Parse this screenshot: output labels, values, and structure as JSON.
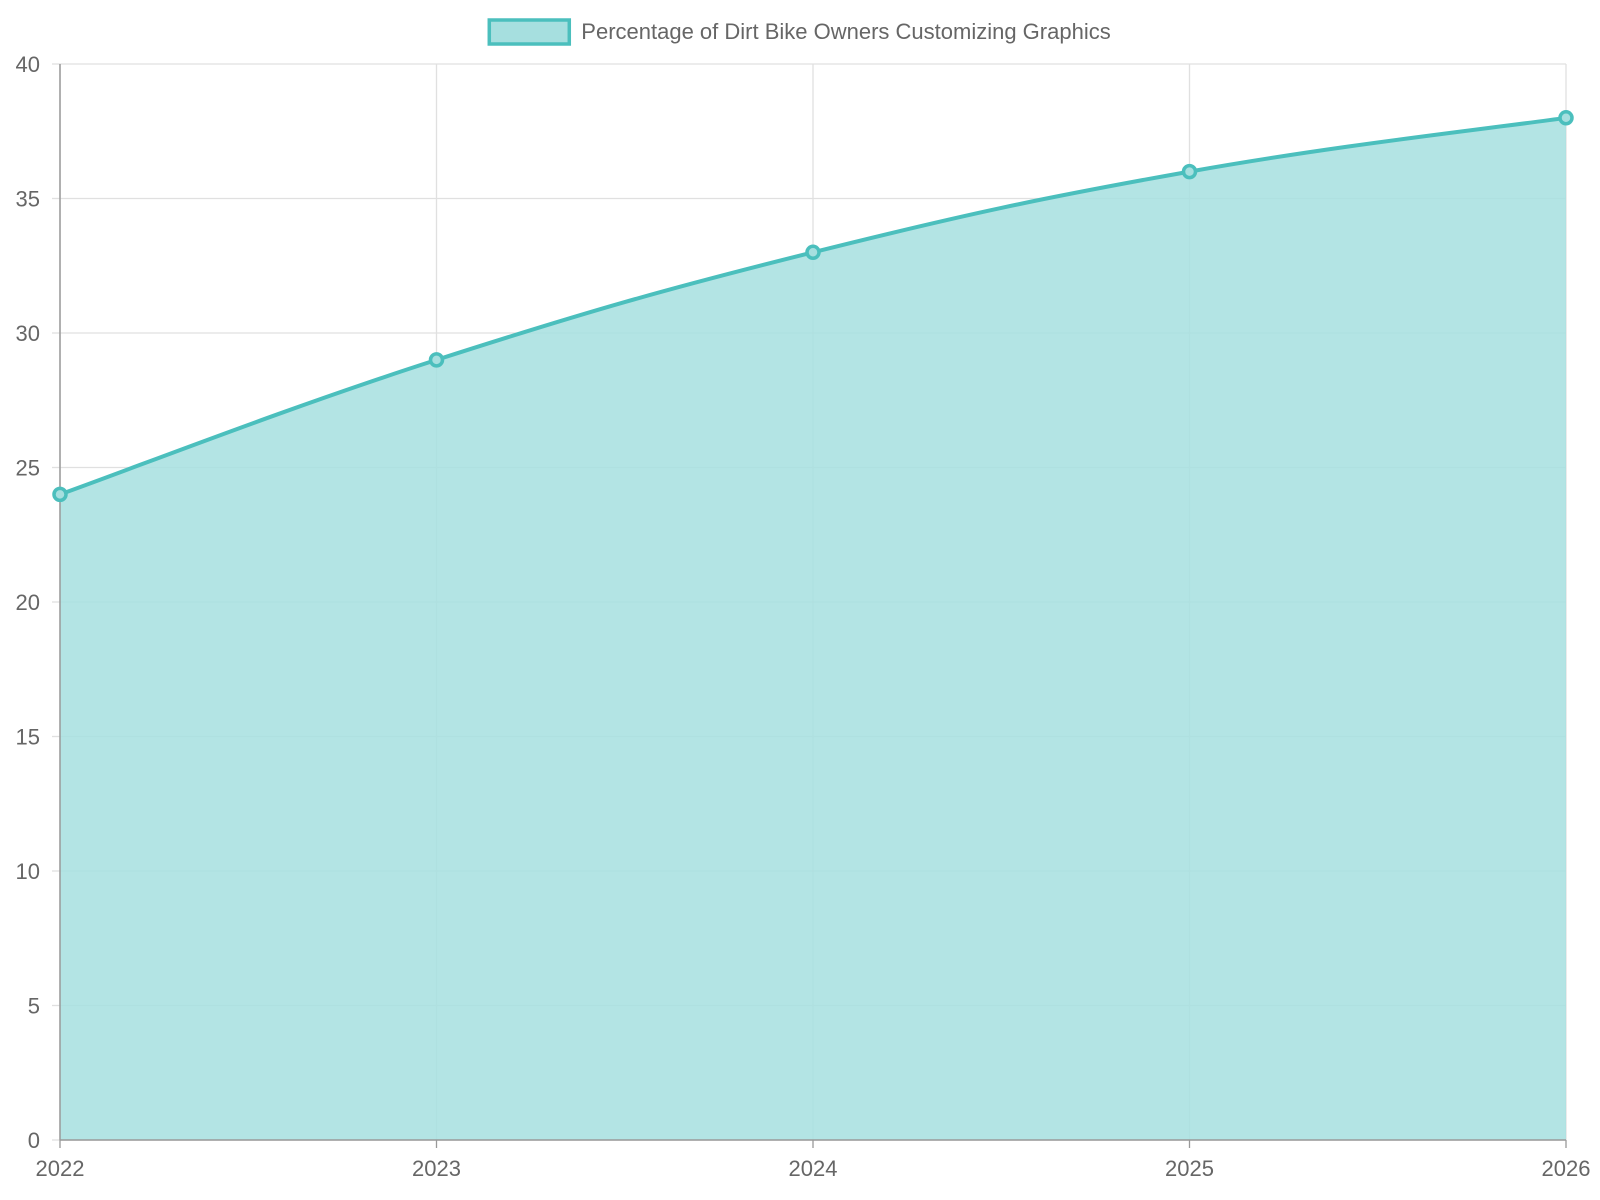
{
  "chart_data": {
    "type": "area",
    "title": "",
    "xlabel": "",
    "ylabel": "",
    "x": [
      "2022",
      "2023",
      "2024",
      "2025",
      "2026"
    ],
    "series": [
      {
        "name": "Percentage of Dirt Bike Owners Customizing Graphics",
        "values": [
          24,
          29,
          33,
          36,
          38
        ]
      }
    ],
    "ylim": [
      0,
      40
    ],
    "yticks": [
      0,
      5,
      10,
      15,
      20,
      25,
      30,
      35,
      40
    ],
    "grid": true,
    "legend_position": "top-center",
    "colors": {
      "line": "#4bbfbd",
      "fill": "#a6dfdf",
      "grid": "#e0e0e0",
      "axis": "#999999",
      "text": "#666666"
    }
  }
}
